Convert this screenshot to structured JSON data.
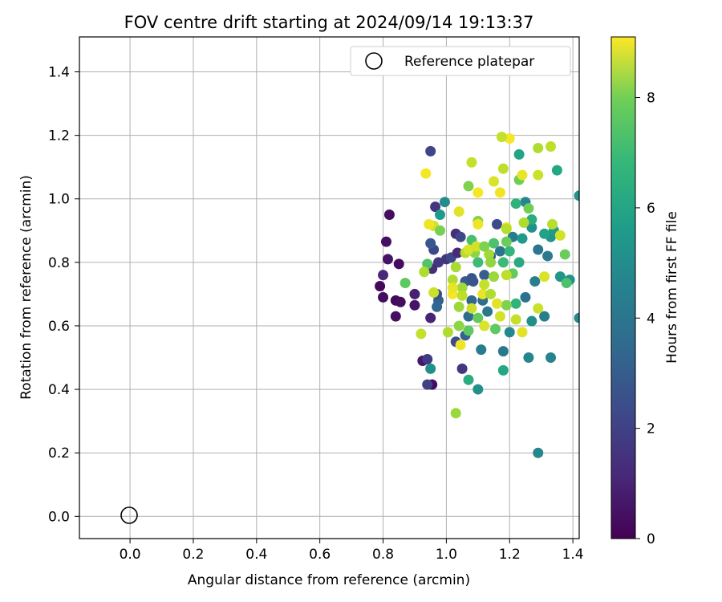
{
  "chart_data": {
    "type": "scatter",
    "title": "FOV centre drift starting at 2024/09/14 19:13:37",
    "xlabel": "Angular distance from reference (arcmin)",
    "ylabel": "Rotation from reference (arcmin)",
    "xlim": [
      -0.16,
      1.42
    ],
    "ylim": [
      -0.07,
      1.51
    ],
    "x_ticks": [
      "0.0",
      "0.2",
      "0.4",
      "0.6",
      "0.8",
      "1.0",
      "1.2",
      "1.4"
    ],
    "y_ticks": [
      "0.0",
      "0.2",
      "0.4",
      "0.6",
      "0.8",
      "1.0",
      "1.2",
      "1.4"
    ],
    "grid": true,
    "legend": {
      "position": "top-right",
      "label": "Reference platepar"
    },
    "colorbar": {
      "label": "Hours from first FF file",
      "range": [
        0,
        9.1
      ],
      "ticks": [
        "0",
        "2",
        "4",
        "6",
        "8"
      ],
      "colormap": "viridis"
    },
    "reference_point": {
      "x": 0.0,
      "y": 0.0
    },
    "series": [
      {
        "points": [
          [
            0.82,
            0.95,
            0.3
          ],
          [
            0.81,
            0.865,
            0.4
          ],
          [
            0.815,
            0.81,
            0.5
          ],
          [
            0.85,
            0.795,
            0.3
          ],
          [
            0.79,
            0.725,
            0.2
          ],
          [
            0.8,
            0.69,
            0.3
          ],
          [
            0.84,
            0.68,
            0.2
          ],
          [
            0.855,
            0.675,
            0.3
          ],
          [
            0.84,
            0.63,
            0.4
          ],
          [
            0.9,
            0.665,
            0.5
          ],
          [
            0.9,
            0.7,
            0.8
          ],
          [
            0.8,
            0.76,
            1.0
          ],
          [
            0.925,
            0.49,
            0.6
          ],
          [
            0.955,
            0.415,
            0.3
          ],
          [
            0.94,
            0.495,
            1.6
          ],
          [
            0.94,
            0.415,
            1.8
          ],
          [
            0.95,
            1.15,
            1.9
          ],
          [
            0.965,
            0.975,
            1.4
          ],
          [
            0.96,
            0.84,
            2.0
          ],
          [
            0.95,
            0.86,
            2.5
          ],
          [
            0.975,
            0.8,
            1.5
          ],
          [
            0.955,
            0.78,
            1.2
          ],
          [
            0.95,
            0.625,
            0.9
          ],
          [
            0.975,
            0.68,
            2.8
          ],
          [
            0.97,
            0.66,
            3.0
          ],
          [
            0.97,
            0.7,
            2.2
          ],
          [
            1.0,
            0.81,
            1.4
          ],
          [
            1.015,
            0.815,
            2.0
          ],
          [
            1.035,
            0.83,
            1.1
          ],
          [
            1.03,
            0.89,
            1.2
          ],
          [
            1.045,
            0.88,
            2.0
          ],
          [
            1.06,
            0.74,
            2.6
          ],
          [
            1.08,
            0.75,
            2.3
          ],
          [
            1.05,
            0.465,
            1.5
          ],
          [
            1.03,
            0.55,
            2.2
          ],
          [
            1.06,
            0.57,
            2.8
          ],
          [
            1.085,
            0.74,
            2.4
          ],
          [
            1.12,
            0.76,
            2.7
          ],
          [
            1.14,
            0.82,
            2.5
          ],
          [
            1.16,
            0.92,
            2.1
          ],
          [
            1.08,
            0.68,
            3.0
          ],
          [
            1.07,
            0.63,
            3.2
          ],
          [
            1.11,
            0.525,
            3.8
          ],
          [
            1.115,
            0.68,
            3.3
          ],
          [
            1.18,
            0.52,
            3.6
          ],
          [
            1.13,
            0.645,
            3.6
          ],
          [
            1.17,
            0.835,
            3.5
          ],
          [
            1.21,
            0.88,
            3.8
          ],
          [
            1.25,
            0.69,
            3.4
          ],
          [
            1.28,
            0.74,
            3.9
          ],
          [
            1.29,
            0.84,
            3.6
          ],
          [
            1.32,
            0.82,
            3.7
          ],
          [
            1.31,
            0.63,
            3.9
          ],
          [
            1.26,
            0.5,
            4.2
          ],
          [
            1.33,
            0.5,
            4.1
          ],
          [
            1.29,
            0.2,
            4.2
          ],
          [
            1.1,
            0.4,
            4.6
          ],
          [
            1.2,
            0.58,
            4.3
          ],
          [
            1.27,
            0.615,
            4.5
          ],
          [
            1.27,
            0.91,
            4.6
          ],
          [
            1.25,
            0.99,
            4.2
          ],
          [
            1.33,
            0.88,
            4.7
          ],
          [
            1.34,
            0.9,
            4.9
          ],
          [
            1.36,
            0.755,
            4.8
          ],
          [
            1.39,
            0.745,
            4.6
          ],
          [
            1.42,
            0.625,
            4.4
          ],
          [
            1.42,
            1.01,
            4.8
          ],
          [
            0.995,
            0.99,
            4.4
          ],
          [
            0.98,
            0.95,
            5.0
          ],
          [
            1.24,
            0.875,
            4.9
          ],
          [
            1.31,
            0.89,
            5.2
          ],
          [
            1.35,
            1.09,
            5.4
          ],
          [
            1.27,
            0.935,
            5.6
          ],
          [
            1.22,
            0.985,
            5.8
          ],
          [
            1.23,
            1.14,
            5.3
          ],
          [
            1.18,
            0.46,
            5.4
          ],
          [
            1.07,
            0.43,
            5.6
          ],
          [
            0.95,
            0.465,
            4.5
          ],
          [
            1.23,
            0.8,
            5.5
          ],
          [
            1.22,
            0.67,
            5.9
          ],
          [
            1.2,
            0.835,
            6.0
          ],
          [
            1.18,
            0.8,
            6.2
          ],
          [
            1.1,
            0.8,
            6.2
          ],
          [
            1.08,
            0.87,
            6.4
          ],
          [
            1.15,
            0.86,
            6.5
          ],
          [
            0.87,
            0.735,
            6.8
          ],
          [
            0.94,
            0.795,
            6.6
          ],
          [
            1.38,
            0.735,
            6.5
          ],
          [
            1.375,
            0.825,
            7.0
          ],
          [
            1.07,
            1.04,
            7.3
          ],
          [
            1.07,
            0.585,
            6.8
          ],
          [
            1.1,
            0.625,
            6.9
          ],
          [
            1.155,
            0.59,
            6.8
          ],
          [
            1.19,
            0.665,
            7.3
          ],
          [
            1.19,
            0.865,
            7.0
          ],
          [
            1.21,
            0.765,
            6.9
          ],
          [
            1.26,
            0.97,
            7.1
          ],
          [
            1.23,
            1.06,
            7.1
          ],
          [
            1.1,
            0.93,
            7.4
          ],
          [
            1.04,
            0.6,
            7.5
          ],
          [
            1.04,
            0.66,
            7.7
          ],
          [
            1.09,
            0.83,
            7.5
          ],
          [
            1.135,
            0.825,
            7.8
          ],
          [
            1.14,
            0.8,
            7.6
          ],
          [
            1.15,
            0.755,
            7.7
          ],
          [
            1.05,
            0.72,
            7.8
          ],
          [
            1.02,
            0.745,
            8.0
          ],
          [
            1.03,
            0.785,
            7.9
          ],
          [
            1.06,
            0.83,
            8.1
          ],
          [
            1.005,
            0.58,
            8.0
          ],
          [
            1.03,
            0.325,
            7.7
          ],
          [
            0.92,
            0.575,
            8.3
          ],
          [
            0.93,
            0.77,
            8.0
          ],
          [
            0.96,
            0.705,
            8.4
          ],
          [
            0.96,
            0.915,
            8.5
          ],
          [
            1.19,
            0.76,
            8.2
          ],
          [
            1.22,
            0.62,
            8.3
          ],
          [
            1.24,
            0.58,
            8.7
          ],
          [
            1.29,
            0.655,
            8.4
          ],
          [
            1.31,
            0.755,
            8.6
          ],
          [
            1.36,
            0.885,
            8.5
          ],
          [
            1.335,
            0.92,
            8.1
          ],
          [
            1.33,
            1.165,
            8.2
          ],
          [
            1.29,
            1.16,
            8.0
          ],
          [
            1.29,
            1.075,
            8.4
          ],
          [
            1.24,
            1.075,
            8.8
          ],
          [
            1.2,
            1.19,
            9.0
          ],
          [
            1.175,
            1.195,
            8.3
          ],
          [
            1.18,
            1.095,
            8.2
          ],
          [
            1.15,
            1.055,
            8.6
          ],
          [
            1.17,
            1.02,
            8.9
          ],
          [
            1.19,
            0.91,
            8.8
          ],
          [
            1.1,
            1.02,
            9.0
          ],
          [
            1.08,
            1.115,
            8.3
          ],
          [
            0.935,
            1.08,
            9.0
          ],
          [
            1.04,
            0.96,
            8.7
          ],
          [
            1.07,
            0.84,
            8.6
          ],
          [
            1.1,
            0.92,
            8.9
          ],
          [
            1.095,
            0.85,
            8.5
          ],
          [
            1.115,
            0.7,
            8.8
          ],
          [
            1.16,
            0.67,
            8.7
          ],
          [
            1.17,
            0.63,
            8.5
          ],
          [
            1.02,
            0.7,
            9.0
          ],
          [
            1.02,
            0.72,
            8.8
          ],
          [
            1.045,
            0.54,
            8.9
          ],
          [
            1.08,
            0.655,
            8.4
          ],
          [
            1.12,
            0.6,
            8.6
          ],
          [
            1.245,
            0.925,
            8.0
          ],
          [
            1.19,
            0.905,
            8.1
          ],
          [
            0.945,
            0.92,
            8.9
          ],
          [
            1.05,
            0.695,
            8.2
          ],
          [
            1.14,
            0.7,
            8.0
          ],
          [
            1.12,
            0.73,
            8.3
          ],
          [
            0.98,
            0.9,
            7.2
          ],
          [
            1.12,
            0.85,
            7.3
          ]
        ]
      }
    ]
  }
}
